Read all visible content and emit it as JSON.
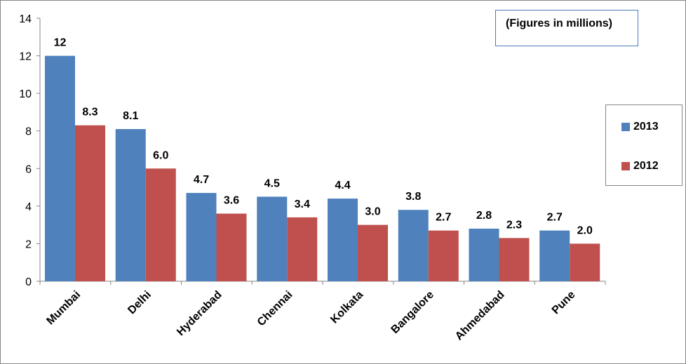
{
  "chart_data": {
    "type": "bar",
    "categories": [
      "Mumbai",
      "Delhi",
      "Hyderabad",
      "Chennai",
      "Kolkata",
      "Bangalore",
      "Ahmedabad",
      "Pune"
    ],
    "series": [
      {
        "name": "2013",
        "color": "#4f81bd",
        "values": [
          12,
          8.1,
          4.7,
          4.5,
          4.4,
          3.8,
          2.8,
          2.7
        ],
        "labels": [
          "12",
          "8.1",
          "4.7",
          "4.5",
          "4.4",
          "3.8",
          "2.8",
          "2.7"
        ]
      },
      {
        "name": "2012",
        "color": "#c0504d",
        "values": [
          8.3,
          6.0,
          3.6,
          3.4,
          3.0,
          2.7,
          2.3,
          2.0
        ],
        "labels": [
          "8.3",
          "6.0",
          "3.6",
          "3.4",
          "3.0",
          "2.7",
          "2.3",
          "2.0"
        ]
      }
    ],
    "ylim": [
      0,
      14
    ],
    "yticks": [
      0,
      2,
      4,
      6,
      8,
      10,
      12,
      14
    ],
    "annotation": "(Figures in millions)",
    "legend_position": "right"
  }
}
